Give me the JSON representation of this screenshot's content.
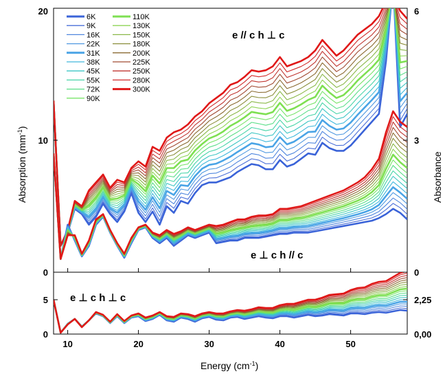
{
  "chart_data": {
    "type": "line",
    "xlabel": "Energy (cm",
    "xlabel_sup": "-1",
    "xlabel_close": ")",
    "xlim": [
      8,
      58
    ],
    "x_ticks": [
      "10",
      "20",
      "30",
      "40",
      "50"
    ],
    "x_tick_values": [
      10,
      20,
      30,
      40,
      50
    ],
    "temperatures_K": [
      6,
      9,
      16,
      22,
      31,
      38,
      45,
      55,
      72,
      90,
      110,
      130,
      150,
      180,
      200,
      225,
      250,
      280,
      300
    ],
    "legend": {
      "placement": "top-left",
      "entries": [
        {
          "label": "6K",
          "color": "#3a63d8",
          "bold": true
        },
        {
          "label": "9K",
          "color": "#4a6fd8",
          "bold": false
        },
        {
          "label": "16K",
          "color": "#4f86de",
          "bold": false
        },
        {
          "label": "22K",
          "color": "#4f98e0",
          "bold": false
        },
        {
          "label": "31K",
          "color": "#4aa4e6",
          "bold": true
        },
        {
          "label": "38K",
          "color": "#40b8dc",
          "bold": false
        },
        {
          "label": "45K",
          "color": "#3dc6c4",
          "bold": false
        },
        {
          "label": "55K",
          "color": "#46d4a8",
          "bold": false
        },
        {
          "label": "72K",
          "color": "#5ade88",
          "bold": false
        },
        {
          "label": "90K",
          "color": "#78e46a",
          "bold": false
        },
        {
          "label": "110K",
          "color": "#7ee052",
          "bold": true
        },
        {
          "label": "130K",
          "color": "#8ed455",
          "bold": false
        },
        {
          "label": "150K",
          "color": "#8ab848",
          "bold": false
        },
        {
          "label": "180K",
          "color": "#8a8e3a",
          "bold": false
        },
        {
          "label": "200K",
          "color": "#8a6a30",
          "bold": false
        },
        {
          "label": "225K",
          "color": "#a04a32",
          "bold": false
        },
        {
          "label": "250K",
          "color": "#c03530",
          "bold": false
        },
        {
          "label": "280K",
          "color": "#d02a2a",
          "bold": false
        },
        {
          "label": "300K",
          "color": "#e01818",
          "bold": true
        }
      ]
    },
    "top_panel": {
      "ylabel_left": "Absorption (mm",
      "ylabel_left_sup": "-1",
      "ylabel_left_close": ")",
      "ylabel_right": "Absorbance",
      "ylim": [
        0,
        20
      ],
      "y_ticks_left": [
        "0",
        "10",
        "20"
      ],
      "y_tick_values_left": [
        0,
        10,
        20
      ],
      "y_ticks_right": [
        "0",
        "3",
        "6"
      ],
      "annotation_upper": "e // c   h ⊥ c",
      "annotation_lower": "e ⊥ c   h // c",
      "series_upper": {
        "x": [
          8,
          9,
          10,
          11,
          12,
          13,
          14,
          15,
          16,
          17,
          18,
          19,
          20,
          21,
          22,
          23,
          24,
          25,
          26,
          27,
          28,
          29,
          30,
          31,
          32,
          33,
          34,
          35,
          36,
          37,
          38,
          39,
          40,
          41,
          42,
          43,
          44,
          45,
          46,
          47,
          48,
          49,
          50,
          51,
          52,
          53,
          54,
          55,
          56,
          57,
          58
        ],
        "y_6K": [
          13.0,
          2.0,
          3.0,
          4.8,
          4.4,
          3.6,
          4.2,
          5.2,
          4.4,
          3.8,
          4.6,
          6.0,
          4.5,
          3.8,
          4.6,
          3.6,
          5.0,
          4.5,
          5.4,
          5.2,
          6.0,
          6.6,
          6.8,
          6.8,
          7.0,
          7.2,
          7.6,
          7.9,
          8.2,
          8.1,
          7.8,
          7.8,
          8.5,
          8.0,
          8.2,
          8.6,
          9.0,
          8.9,
          9.8,
          9.4,
          9.2,
          9.2,
          9.6,
          10.2,
          10.8,
          11.4,
          12.0,
          16.0,
          22.0,
          11.0,
          12.0
        ],
        "y_300K": [
          13.0,
          2.0,
          3.2,
          5.4,
          5.0,
          6.2,
          6.8,
          7.4,
          6.4,
          7.0,
          6.8,
          7.9,
          8.4,
          8.0,
          9.5,
          9.2,
          10.2,
          10.6,
          10.8,
          11.2,
          11.8,
          12.2,
          12.8,
          13.2,
          13.6,
          14.2,
          14.4,
          14.8,
          15.3,
          15.2,
          15.3,
          15.6,
          16.3,
          15.6,
          15.8,
          16.0,
          16.3,
          16.8,
          17.6,
          17.0,
          16.4,
          16.8,
          17.4,
          18.0,
          18.4,
          18.8,
          19.4,
          20.5,
          21.0,
          19.8,
          19.2
        ]
      },
      "series_lower": {
        "x": [
          8,
          9,
          10,
          11,
          12,
          13,
          14,
          15,
          16,
          17,
          18,
          19,
          20,
          21,
          22,
          23,
          24,
          25,
          26,
          27,
          28,
          29,
          30,
          31,
          32,
          33,
          34,
          35,
          36,
          37,
          38,
          39,
          40,
          41,
          42,
          43,
          44,
          45,
          46,
          47,
          48,
          49,
          50,
          51,
          52,
          53,
          54,
          55,
          56,
          57,
          58
        ],
        "y_6K": [
          9.0,
          1.0,
          3.6,
          2.4,
          1.2,
          2.0,
          3.6,
          4.2,
          3.0,
          2.0,
          1.1,
          2.2,
          3.2,
          3.4,
          2.6,
          2.2,
          2.6,
          2.0,
          2.4,
          2.8,
          2.6,
          2.8,
          3.0,
          2.2,
          2.3,
          2.4,
          2.4,
          2.6,
          2.6,
          2.6,
          2.7,
          2.8,
          2.9,
          2.9,
          3.0,
          3.0,
          3.0,
          3.1,
          3.2,
          3.3,
          3.4,
          3.5,
          3.6,
          3.7,
          3.8,
          3.9,
          4.1,
          4.4,
          4.8,
          4.5,
          4.0
        ],
        "y_300K": [
          9.0,
          1.0,
          2.8,
          2.8,
          1.4,
          2.4,
          4.0,
          4.4,
          3.2,
          2.2,
          1.4,
          2.6,
          3.4,
          3.6,
          3.0,
          2.8,
          3.2,
          2.9,
          3.1,
          3.4,
          3.2,
          3.4,
          3.6,
          3.5,
          3.6,
          3.8,
          4.0,
          4.0,
          4.2,
          4.3,
          4.3,
          4.4,
          4.8,
          4.8,
          4.9,
          5.0,
          5.2,
          5.4,
          5.6,
          5.8,
          6.0,
          6.2,
          6.5,
          6.8,
          7.2,
          7.8,
          8.6,
          10.6,
          12.2,
          11.4,
          11.0
        ]
      }
    },
    "bottom_panel": {
      "ylim": [
        0,
        9
      ],
      "y_ticks_left": [
        "0",
        "5"
      ],
      "y_tick_values_left": [
        0,
        5
      ],
      "y_ticks_right": [
        "0,00",
        "2,25"
      ],
      "annotation": "e ⊥ c   h ⊥ c",
      "series": {
        "x": [
          8,
          9,
          10,
          11,
          12,
          13,
          14,
          15,
          16,
          17,
          18,
          19,
          20,
          21,
          22,
          23,
          24,
          25,
          26,
          27,
          28,
          29,
          30,
          31,
          32,
          33,
          34,
          35,
          36,
          37,
          38,
          39,
          40,
          41,
          42,
          43,
          44,
          45,
          46,
          47,
          48,
          49,
          50,
          51,
          52,
          53,
          54,
          55,
          56,
          57,
          58
        ],
        "y_6K": [
          5.0,
          0.2,
          1.5,
          2.2,
          1.1,
          2.0,
          3.0,
          2.6,
          1.6,
          2.6,
          1.6,
          2.4,
          2.6,
          1.9,
          2.2,
          2.8,
          2.0,
          1.8,
          2.4,
          2.2,
          1.8,
          2.3,
          2.5,
          2.1,
          2.0,
          2.4,
          2.5,
          2.2,
          2.4,
          2.6,
          2.4,
          2.3,
          2.6,
          2.6,
          2.4,
          2.6,
          2.8,
          2.6,
          2.7,
          2.9,
          2.8,
          2.7,
          3.0,
          3.0,
          2.9,
          3.1,
          3.2,
          3.1,
          3.3,
          3.5,
          3.4
        ],
        "y_300K": [
          5.0,
          0.2,
          1.4,
          2.2,
          1.0,
          2.0,
          3.2,
          2.8,
          1.8,
          2.9,
          1.9,
          2.7,
          3.0,
          2.4,
          2.7,
          3.2,
          2.6,
          2.5,
          3.0,
          2.9,
          2.6,
          3.0,
          3.2,
          3.0,
          3.0,
          3.3,
          3.5,
          3.4,
          3.6,
          3.9,
          3.8,
          3.8,
          4.2,
          4.4,
          4.4,
          4.7,
          5.0,
          5.0,
          5.3,
          5.7,
          5.8,
          5.9,
          6.4,
          6.7,
          6.8,
          7.3,
          7.6,
          7.7,
          8.3,
          8.9,
          9.2
        ]
      }
    }
  }
}
